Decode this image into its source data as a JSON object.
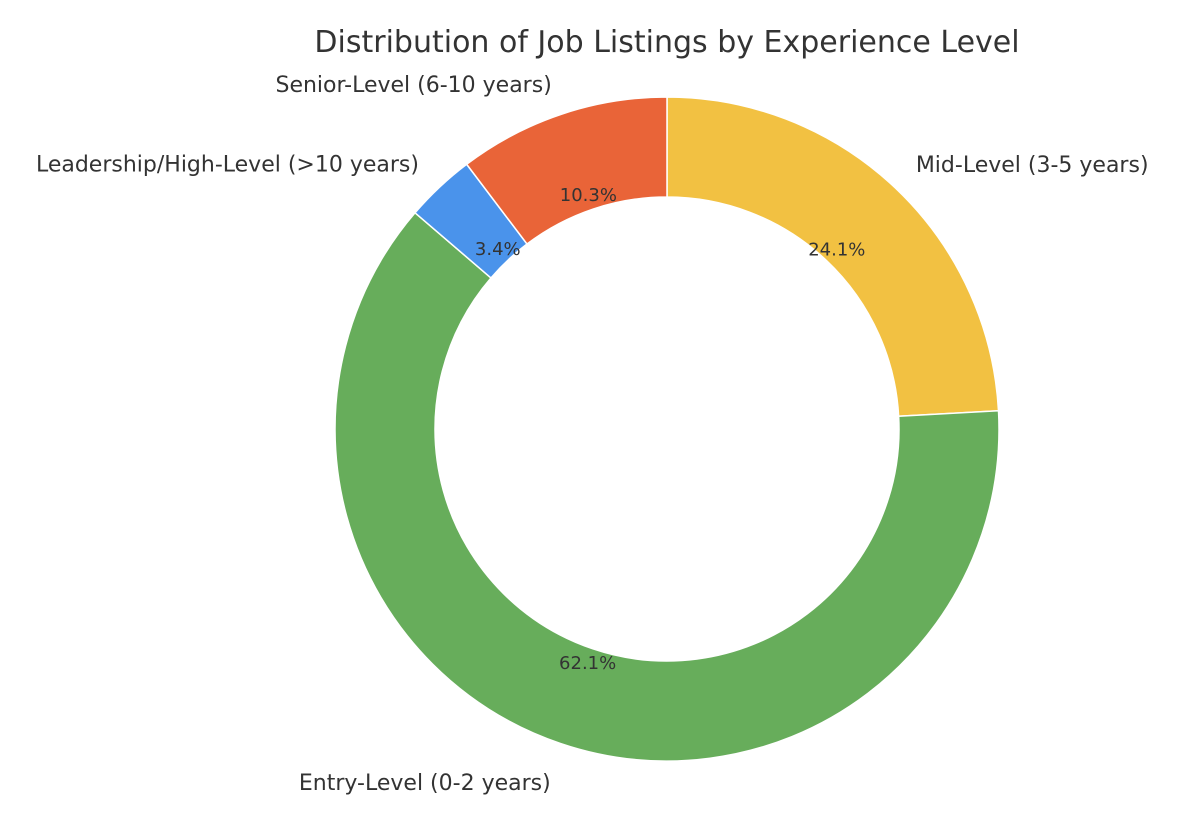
{
  "chart_data": {
    "type": "pie",
    "variant": "donut",
    "title": "Distribution of Job Listings by Experience Level",
    "start": "top, clockwise",
    "legend": "none (labels placed outside slices)",
    "slices": [
      {
        "label": "Mid-Level (3-5 years)",
        "value": 24.1,
        "pct_label": "24.1%",
        "color": "#f2c142"
      },
      {
        "label": "Entry-Level (0-2 years)",
        "value": 62.1,
        "pct_label": "62.1%",
        "color": "#67ad5b"
      },
      {
        "label": "Leadership/High-Level (>10 years)",
        "value": 3.4,
        "pct_label": "3.4%",
        "color": "#4a93eb"
      },
      {
        "label": "Senior-Level (6-10 years)",
        "value": 10.3,
        "pct_label": "10.3%",
        "color": "#e96438"
      }
    ]
  }
}
